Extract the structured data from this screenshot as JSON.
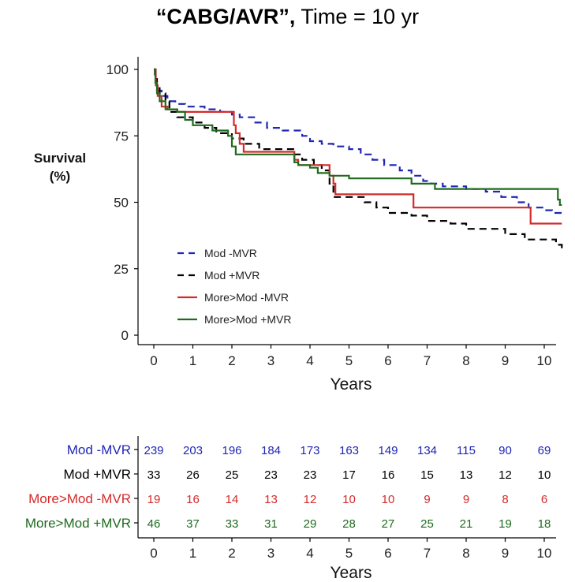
{
  "title_bold": "“CABG/AVR”,",
  "title_rest": " Time = 10 yr",
  "chart_data": {
    "type": "line",
    "subtype": "kaplan-meier step",
    "title": "“CABG/AVR”, Time = 10 yr",
    "xlabel": "Years",
    "ylabel": "Survival\n(%)",
    "ylabel_lines": [
      "Survival",
      "(%)"
    ],
    "xlim": [
      -0.3,
      10.45
    ],
    "ylim": [
      0,
      100
    ],
    "xticks": [
      0,
      1,
      2,
      3,
      4,
      5,
      6,
      7,
      8,
      9,
      10
    ],
    "yticks": [
      0,
      25,
      50,
      75,
      100
    ],
    "legend_position": "bottom-left",
    "series": [
      {
        "name": "Mod -MVR",
        "color": "#1f26b5",
        "dash": "dashed",
        "points": [
          [
            0,
            100
          ],
          [
            0.03,
            97
          ],
          [
            0.06,
            94
          ],
          [
            0.1,
            92
          ],
          [
            0.2,
            90
          ],
          [
            0.35,
            88
          ],
          [
            0.55,
            87
          ],
          [
            0.8,
            86
          ],
          [
            1.3,
            85
          ],
          [
            1.7,
            84
          ],
          [
            2.0,
            83
          ],
          [
            2.2,
            82
          ],
          [
            2.6,
            80
          ],
          [
            2.9,
            78
          ],
          [
            3.3,
            77
          ],
          [
            3.8,
            75
          ],
          [
            4.0,
            73
          ],
          [
            4.3,
            72
          ],
          [
            4.6,
            71
          ],
          [
            5.0,
            70
          ],
          [
            5.3,
            68
          ],
          [
            5.6,
            66
          ],
          [
            5.9,
            64
          ],
          [
            6.3,
            62
          ],
          [
            6.6,
            60
          ],
          [
            6.9,
            58
          ],
          [
            7.1,
            57
          ],
          [
            7.4,
            56
          ],
          [
            8.0,
            55
          ],
          [
            8.5,
            54
          ],
          [
            8.9,
            52
          ],
          [
            9.3,
            50
          ],
          [
            9.6,
            48
          ],
          [
            10.0,
            47
          ],
          [
            10.2,
            46
          ],
          [
            10.45,
            46
          ]
        ]
      },
      {
        "name": "Mod +MVR",
        "color": "#000000",
        "dash": "dashed",
        "points": [
          [
            0,
            100
          ],
          [
            0.03,
            97
          ],
          [
            0.08,
            94
          ],
          [
            0.15,
            91
          ],
          [
            0.3,
            88
          ],
          [
            0.4,
            84
          ],
          [
            0.6,
            82
          ],
          [
            1.0,
            80
          ],
          [
            1.3,
            78
          ],
          [
            1.6,
            76
          ],
          [
            2.0,
            74
          ],
          [
            2.3,
            72
          ],
          [
            2.7,
            70
          ],
          [
            3.2,
            70
          ],
          [
            3.6,
            68
          ],
          [
            3.8,
            66
          ],
          [
            4.1,
            64
          ],
          [
            4.3,
            62
          ],
          [
            4.5,
            57
          ],
          [
            4.6,
            52
          ],
          [
            5.0,
            52
          ],
          [
            5.4,
            50
          ],
          [
            5.7,
            48
          ],
          [
            6.0,
            46
          ],
          [
            6.6,
            45
          ],
          [
            7.0,
            43
          ],
          [
            7.6,
            42
          ],
          [
            8.0,
            40
          ],
          [
            9.0,
            38
          ],
          [
            9.5,
            36
          ],
          [
            10.3,
            34
          ],
          [
            10.45,
            32
          ]
        ]
      },
      {
        "name": "More>Mod -MVR",
        "color": "#d42a2a",
        "dash": "solid",
        "points": [
          [
            0,
            100
          ],
          [
            0.05,
            94
          ],
          [
            0.1,
            90
          ],
          [
            0.2,
            86
          ],
          [
            0.35,
            85
          ],
          [
            0.6,
            84
          ],
          [
            2.0,
            84
          ],
          [
            2.05,
            79
          ],
          [
            2.1,
            76
          ],
          [
            2.2,
            72
          ],
          [
            2.3,
            69
          ],
          [
            3.2,
            69
          ],
          [
            3.6,
            66
          ],
          [
            3.7,
            64
          ],
          [
            4.4,
            64
          ],
          [
            4.5,
            60
          ],
          [
            4.6,
            57
          ],
          [
            4.65,
            53
          ],
          [
            5.2,
            53
          ],
          [
            6.6,
            53
          ],
          [
            6.65,
            48
          ],
          [
            9.6,
            48
          ],
          [
            9.65,
            42
          ],
          [
            10.45,
            42
          ]
        ]
      },
      {
        "name": "More>Mod +MVR",
        "color": "#1e6b1e",
        "dash": "solid",
        "points": [
          [
            0,
            100
          ],
          [
            0.04,
            95
          ],
          [
            0.08,
            91
          ],
          [
            0.15,
            88
          ],
          [
            0.3,
            85
          ],
          [
            0.6,
            84
          ],
          [
            0.8,
            81
          ],
          [
            1.0,
            79
          ],
          [
            1.5,
            77
          ],
          [
            1.9,
            75
          ],
          [
            2.0,
            71
          ],
          [
            2.1,
            68
          ],
          [
            3.4,
            68
          ],
          [
            3.6,
            65
          ],
          [
            3.7,
            64
          ],
          [
            4.0,
            63
          ],
          [
            4.2,
            61
          ],
          [
            4.5,
            60
          ],
          [
            5.0,
            59
          ],
          [
            5.2,
            59
          ],
          [
            6.6,
            57
          ],
          [
            7.1,
            57
          ],
          [
            7.2,
            55
          ],
          [
            8.0,
            55
          ],
          [
            9.0,
            55
          ],
          [
            10.3,
            55
          ],
          [
            10.35,
            51
          ],
          [
            10.4,
            49
          ],
          [
            10.45,
            49
          ]
        ]
      }
    ]
  },
  "risk_table": {
    "xlabel": "Years",
    "ticks": [
      "0",
      "1",
      "2",
      "3",
      "4",
      "5",
      "6",
      "7",
      "8",
      "9",
      "10"
    ],
    "rows": [
      {
        "label": "Mod -MVR",
        "color": "#1f26b5",
        "values": [
          "239",
          "203",
          "196",
          "184",
          "173",
          "163",
          "149",
          "134",
          "115",
          "90",
          "69"
        ]
      },
      {
        "label": "Mod +MVR",
        "color": "#000000",
        "values": [
          "33",
          "26",
          "25",
          "23",
          "23",
          "17",
          "16",
          "15",
          "13",
          "12",
          "10"
        ]
      },
      {
        "label": "More>Mod -MVR",
        "color": "#d42a2a",
        "values": [
          "19",
          "16",
          "14",
          "13",
          "12",
          "10",
          "10",
          "9",
          "9",
          "8",
          "6"
        ]
      },
      {
        "label": "More>Mod +MVR",
        "color": "#1e6b1e",
        "values": [
          "46",
          "37",
          "33",
          "31",
          "29",
          "28",
          "27",
          "25",
          "21",
          "19",
          "18"
        ]
      }
    ]
  }
}
